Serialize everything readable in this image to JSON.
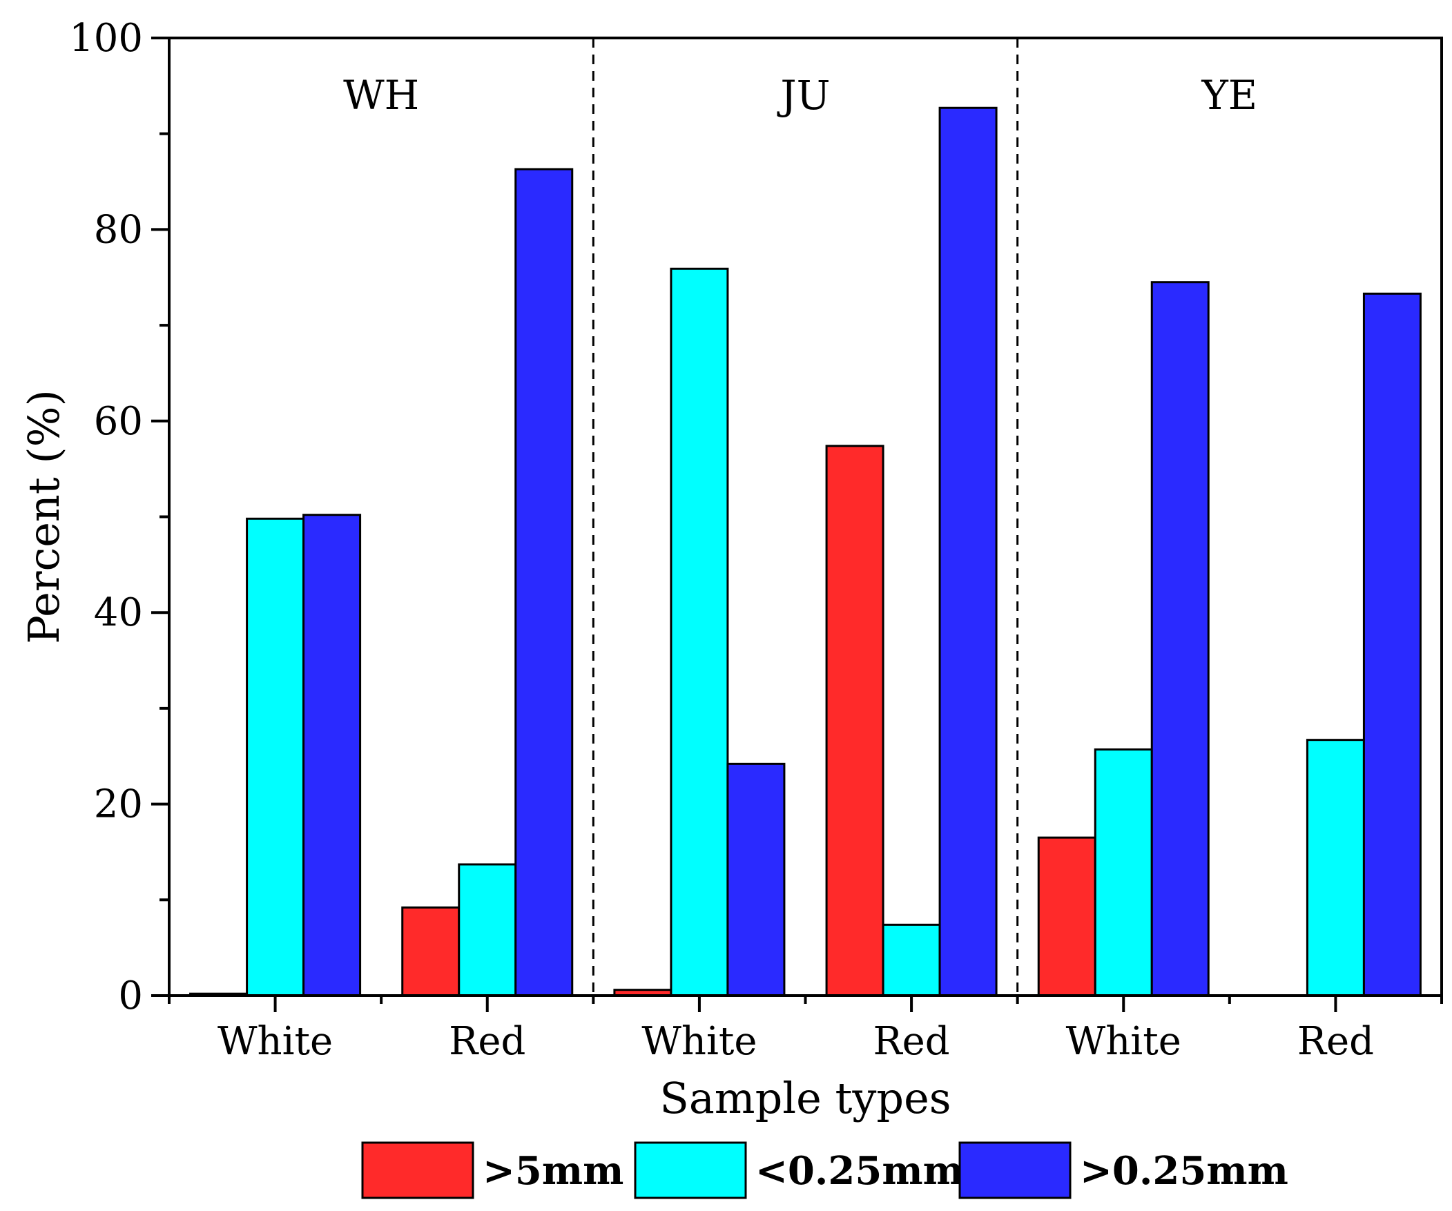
{
  "chart_data": {
    "type": "bar",
    "xlabel": "Sample types",
    "ylabel": "Percent (%)",
    "ylim": [
      0,
      100
    ],
    "yticks": [
      "0",
      "20",
      "40",
      "60",
      "80",
      "100"
    ],
    "groups": [
      "WH",
      "JU",
      "YE"
    ],
    "categories": [
      "White",
      "Red",
      "White",
      "Red",
      "White",
      "Red"
    ],
    "category_group": [
      0,
      0,
      1,
      1,
      2,
      2
    ],
    "series": [
      {
        "name": ">5mm",
        "color": "#ff2a2a",
        "values": [
          0.2,
          9.2,
          0.6,
          57.4,
          16.5,
          0
        ]
      },
      {
        "name": "<0.25mm",
        "color": "#00ffff",
        "values": [
          49.8,
          13.7,
          75.9,
          7.4,
          25.7,
          26.7
        ]
      },
      {
        "name": ">0.25mm",
        "color": "#2a2aff",
        "values": [
          50.2,
          86.3,
          24.2,
          92.7,
          74.5,
          73.3
        ]
      }
    ],
    "grid": false,
    "legend_position": "bottom"
  }
}
